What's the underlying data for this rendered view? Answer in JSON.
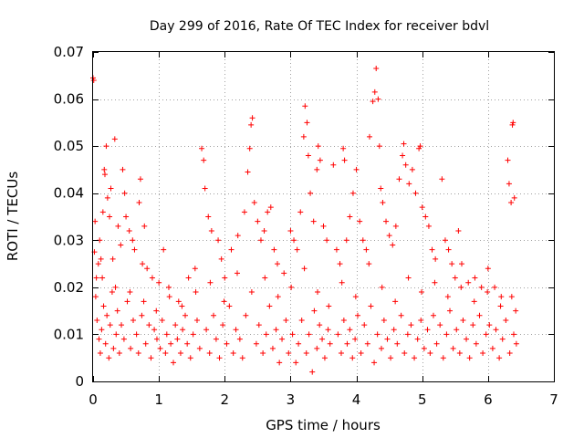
{
  "chart_data": {
    "type": "scatter",
    "title": "Day 299 of 2016, Rate Of TEC Index for receiver bdvl",
    "xlabel": "GPS time / hours",
    "ylabel": "ROTI / TECUs",
    "xlim": [
      0,
      7
    ],
    "ylim": [
      0,
      0.07
    ],
    "xticks": [
      0,
      1,
      2,
      3,
      4,
      5,
      6,
      7
    ],
    "xtick_labels": [
      "0",
      "1",
      "2",
      "3",
      "4",
      "5",
      "6",
      "7"
    ],
    "yticks": [
      0,
      0.01,
      0.02,
      0.03,
      0.04,
      0.05,
      0.06,
      0.07
    ],
    "ytick_labels": [
      "0",
      "0.01",
      "0.02",
      "0.03",
      "0.04",
      "0.05",
      "0.06",
      "0.07"
    ],
    "grid": true,
    "marker": "+",
    "color": "#ff0000",
    "series": [
      {
        "name": "ROTI",
        "points": [
          [
            0.0,
            0.0645
          ],
          [
            0.01,
            0.064
          ],
          [
            0.02,
            0.0275
          ],
          [
            0.03,
            0.034
          ],
          [
            0.05,
            0.022
          ],
          [
            0.08,
            0.025
          ],
          [
            0.1,
            0.03
          ],
          [
            0.12,
            0.026
          ],
          [
            0.15,
            0.036
          ],
          [
            0.17,
            0.045
          ],
          [
            0.18,
            0.044
          ],
          [
            0.2,
            0.05
          ],
          [
            0.22,
            0.039
          ],
          [
            0.25,
            0.035
          ],
          [
            0.27,
            0.041
          ],
          [
            0.3,
            0.026
          ],
          [
            0.33,
            0.0515
          ],
          [
            0.38,
            0.033
          ],
          [
            0.42,
            0.029
          ],
          [
            0.45,
            0.045
          ],
          [
            0.48,
            0.04
          ],
          [
            0.5,
            0.035
          ],
          [
            0.55,
            0.032
          ],
          [
            0.6,
            0.03
          ],
          [
            0.63,
            0.028
          ],
          [
            0.7,
            0.038
          ],
          [
            0.72,
            0.043
          ],
          [
            0.75,
            0.025
          ],
          [
            0.78,
            0.033
          ],
          [
            0.82,
            0.024
          ],
          [
            0.9,
            0.022
          ],
          [
            1.0,
            0.021
          ],
          [
            1.07,
            0.028
          ],
          [
            1.15,
            0.02
          ],
          [
            1.3,
            0.017
          ],
          [
            1.45,
            0.022
          ],
          [
            1.55,
            0.024
          ],
          [
            1.65,
            0.0495
          ],
          [
            1.68,
            0.047
          ],
          [
            1.7,
            0.041
          ],
          [
            1.75,
            0.035
          ],
          [
            1.8,
            0.032
          ],
          [
            1.9,
            0.03
          ],
          [
            1.95,
            0.026
          ],
          [
            2.0,
            0.022
          ],
          [
            2.1,
            0.028
          ],
          [
            2.2,
            0.031
          ],
          [
            2.3,
            0.036
          ],
          [
            2.35,
            0.0445
          ],
          [
            2.38,
            0.0495
          ],
          [
            2.4,
            0.0545
          ],
          [
            2.42,
            0.056
          ],
          [
            2.45,
            0.038
          ],
          [
            2.5,
            0.034
          ],
          [
            2.55,
            0.03
          ],
          [
            2.6,
            0.032
          ],
          [
            2.65,
            0.036
          ],
          [
            2.7,
            0.037
          ],
          [
            2.75,
            0.028
          ],
          [
            2.8,
            0.025
          ],
          [
            2.9,
            0.023
          ],
          [
            3.0,
            0.032
          ],
          [
            3.05,
            0.03
          ],
          [
            3.1,
            0.028
          ],
          [
            3.15,
            0.036
          ],
          [
            3.2,
            0.052
          ],
          [
            3.22,
            0.0585
          ],
          [
            3.25,
            0.055
          ],
          [
            3.27,
            0.048
          ],
          [
            3.3,
            0.04
          ],
          [
            3.35,
            0.034
          ],
          [
            3.4,
            0.045
          ],
          [
            3.42,
            0.05
          ],
          [
            3.45,
            0.047
          ],
          [
            3.5,
            0.033
          ],
          [
            3.55,
            0.03
          ],
          [
            3.65,
            0.046
          ],
          [
            3.7,
            0.028
          ],
          [
            3.75,
            0.025
          ],
          [
            3.8,
            0.0495
          ],
          [
            3.82,
            0.047
          ],
          [
            3.85,
            0.03
          ],
          [
            3.9,
            0.035
          ],
          [
            3.95,
            0.04
          ],
          [
            4.0,
            0.045
          ],
          [
            4.05,
            0.034
          ],
          [
            4.1,
            0.03
          ],
          [
            4.15,
            0.028
          ],
          [
            4.2,
            0.052
          ],
          [
            4.25,
            0.0595
          ],
          [
            4.28,
            0.0615
          ],
          [
            4.3,
            0.0665
          ],
          [
            4.33,
            0.06
          ],
          [
            4.35,
            0.05
          ],
          [
            4.37,
            0.041
          ],
          [
            4.4,
            0.038
          ],
          [
            4.45,
            0.034
          ],
          [
            4.5,
            0.031
          ],
          [
            4.55,
            0.029
          ],
          [
            4.6,
            0.033
          ],
          [
            4.65,
            0.043
          ],
          [
            4.7,
            0.048
          ],
          [
            4.72,
            0.0505
          ],
          [
            4.75,
            0.046
          ],
          [
            4.8,
            0.042
          ],
          [
            4.85,
            0.045
          ],
          [
            4.9,
            0.04
          ],
          [
            4.95,
            0.0495
          ],
          [
            4.97,
            0.05
          ],
          [
            5.0,
            0.037
          ],
          [
            5.05,
            0.035
          ],
          [
            5.1,
            0.033
          ],
          [
            5.15,
            0.028
          ],
          [
            5.2,
            0.026
          ],
          [
            5.3,
            0.043
          ],
          [
            5.35,
            0.03
          ],
          [
            5.4,
            0.028
          ],
          [
            5.45,
            0.025
          ],
          [
            5.5,
            0.022
          ],
          [
            5.55,
            0.032
          ],
          [
            5.6,
            0.025
          ],
          [
            5.7,
            0.021
          ],
          [
            5.8,
            0.022
          ],
          [
            5.9,
            0.02
          ],
          [
            6.0,
            0.024
          ],
          [
            6.1,
            0.02
          ],
          [
            6.2,
            0.018
          ],
          [
            6.3,
            0.047
          ],
          [
            6.32,
            0.042
          ],
          [
            6.35,
            0.038
          ],
          [
            6.37,
            0.0545
          ],
          [
            6.38,
            0.055
          ],
          [
            6.4,
            0.039
          ],
          [
            6.42,
            0.015
          ],
          [
            0.04,
            0.018
          ],
          [
            0.06,
            0.013
          ],
          [
            0.09,
            0.009
          ],
          [
            0.11,
            0.006
          ],
          [
            0.13,
            0.011
          ],
          [
            0.16,
            0.016
          ],
          [
            0.19,
            0.008
          ],
          [
            0.21,
            0.014
          ],
          [
            0.24,
            0.005
          ],
          [
            0.26,
            0.012
          ],
          [
            0.29,
            0.019
          ],
          [
            0.31,
            0.007
          ],
          [
            0.35,
            0.01
          ],
          [
            0.37,
            0.015
          ],
          [
            0.4,
            0.006
          ],
          [
            0.43,
            0.012
          ],
          [
            0.47,
            0.009
          ],
          [
            0.52,
            0.017
          ],
          [
            0.57,
            0.007
          ],
          [
            0.61,
            0.013
          ],
          [
            0.66,
            0.01
          ],
          [
            0.69,
            0.006
          ],
          [
            0.74,
            0.014
          ],
          [
            0.8,
            0.008
          ],
          [
            0.85,
            0.012
          ],
          [
            0.88,
            0.005
          ],
          [
            0.93,
            0.011
          ],
          [
            0.97,
            0.009
          ],
          [
            1.02,
            0.007
          ],
          [
            1.05,
            0.013
          ],
          [
            1.1,
            0.006
          ],
          [
            1.12,
            0.01
          ],
          [
            1.18,
            0.008
          ],
          [
            1.22,
            0.004
          ],
          [
            1.25,
            0.012
          ],
          [
            1.28,
            0.009
          ],
          [
            1.33,
            0.006
          ],
          [
            1.36,
            0.011
          ],
          [
            1.4,
            0.014
          ],
          [
            1.43,
            0.008
          ],
          [
            1.48,
            0.005
          ],
          [
            1.52,
            0.01
          ],
          [
            1.58,
            0.013
          ],
          [
            1.62,
            0.007
          ],
          [
            1.72,
            0.011
          ],
          [
            1.77,
            0.006
          ],
          [
            1.83,
            0.014
          ],
          [
            1.87,
            0.009
          ],
          [
            1.92,
            0.005
          ],
          [
            1.97,
            0.012
          ],
          [
            2.03,
            0.008
          ],
          [
            2.07,
            0.016
          ],
          [
            2.13,
            0.006
          ],
          [
            2.17,
            0.011
          ],
          [
            2.23,
            0.009
          ],
          [
            2.27,
            0.005
          ],
          [
            2.32,
            0.014
          ],
          [
            2.48,
            0.008
          ],
          [
            2.52,
            0.012
          ],
          [
            2.58,
            0.006
          ],
          [
            2.63,
            0.01
          ],
          [
            2.68,
            0.016
          ],
          [
            2.73,
            0.007
          ],
          [
            2.78,
            0.011
          ],
          [
            2.83,
            0.004
          ],
          [
            2.87,
            0.009
          ],
          [
            2.93,
            0.013
          ],
          [
            2.97,
            0.006
          ],
          [
            3.03,
            0.01
          ],
          [
            3.08,
            0.004
          ],
          [
            3.12,
            0.008
          ],
          [
            3.17,
            0.013
          ],
          [
            3.24,
            0.006
          ],
          [
            3.28,
            0.01
          ],
          [
            3.33,
            0.002
          ],
          [
            3.36,
            0.015
          ],
          [
            3.4,
            0.007
          ],
          [
            3.44,
            0.012
          ],
          [
            3.48,
            0.009
          ],
          [
            3.52,
            0.005
          ],
          [
            3.57,
            0.011
          ],
          [
            3.6,
            0.008
          ],
          [
            3.72,
            0.01
          ],
          [
            3.77,
            0.006
          ],
          [
            3.81,
            0.013
          ],
          [
            3.86,
            0.008
          ],
          [
            3.9,
            0.011
          ],
          [
            3.94,
            0.005
          ],
          [
            3.98,
            0.009
          ],
          [
            4.02,
            0.014
          ],
          [
            4.07,
            0.006
          ],
          [
            4.12,
            0.012
          ],
          [
            4.17,
            0.008
          ],
          [
            4.22,
            0.016
          ],
          [
            4.27,
            0.004
          ],
          [
            4.32,
            0.01
          ],
          [
            4.38,
            0.007
          ],
          [
            4.42,
            0.013
          ],
          [
            4.47,
            0.009
          ],
          [
            4.52,
            0.005
          ],
          [
            4.57,
            0.011
          ],
          [
            4.62,
            0.008
          ],
          [
            4.68,
            0.014
          ],
          [
            4.73,
            0.006
          ],
          [
            4.78,
            0.01
          ],
          [
            4.83,
            0.012
          ],
          [
            4.88,
            0.005
          ],
          [
            4.93,
            0.009
          ],
          [
            4.98,
            0.013
          ],
          [
            5.03,
            0.007
          ],
          [
            5.08,
            0.011
          ],
          [
            5.12,
            0.006
          ],
          [
            5.17,
            0.014
          ],
          [
            5.22,
            0.008
          ],
          [
            5.27,
            0.012
          ],
          [
            5.32,
            0.005
          ],
          [
            5.37,
            0.01
          ],
          [
            5.42,
            0.015
          ],
          [
            5.47,
            0.007
          ],
          [
            5.52,
            0.011
          ],
          [
            5.57,
            0.006
          ],
          [
            5.62,
            0.013
          ],
          [
            5.67,
            0.009
          ],
          [
            5.72,
            0.005
          ],
          [
            5.77,
            0.012
          ],
          [
            5.82,
            0.008
          ],
          [
            5.87,
            0.014
          ],
          [
            5.92,
            0.006
          ],
          [
            5.97,
            0.01
          ],
          [
            6.02,
            0.012
          ],
          [
            6.07,
            0.007
          ],
          [
            6.12,
            0.011
          ],
          [
            6.17,
            0.005
          ],
          [
            6.22,
            0.009
          ],
          [
            6.27,
            0.013
          ],
          [
            6.33,
            0.006
          ],
          [
            6.39,
            0.01
          ],
          [
            6.43,
            0.008
          ],
          [
            0.14,
            0.022
          ],
          [
            0.34,
            0.02
          ],
          [
            0.56,
            0.019
          ],
          [
            0.77,
            0.017
          ],
          [
            0.96,
            0.015
          ],
          [
            1.16,
            0.018
          ],
          [
            1.35,
            0.016
          ],
          [
            1.56,
            0.019
          ],
          [
            1.78,
            0.021
          ],
          [
            1.99,
            0.017
          ],
          [
            2.19,
            0.023
          ],
          [
            2.41,
            0.019
          ],
          [
            2.61,
            0.022
          ],
          [
            2.81,
            0.018
          ],
          [
            3.01,
            0.02
          ],
          [
            3.21,
            0.024
          ],
          [
            3.41,
            0.019
          ],
          [
            3.58,
            0.016
          ],
          [
            3.78,
            0.021
          ],
          [
            3.99,
            0.018
          ],
          [
            4.19,
            0.025
          ],
          [
            4.39,
            0.02
          ],
          [
            4.59,
            0.017
          ],
          [
            4.79,
            0.022
          ],
          [
            4.99,
            0.019
          ],
          [
            5.19,
            0.021
          ],
          [
            5.39,
            0.018
          ],
          [
            5.59,
            0.02
          ],
          [
            5.79,
            0.017
          ],
          [
            5.99,
            0.019
          ],
          [
            6.19,
            0.016
          ],
          [
            6.36,
            0.018
          ]
        ]
      }
    ]
  }
}
